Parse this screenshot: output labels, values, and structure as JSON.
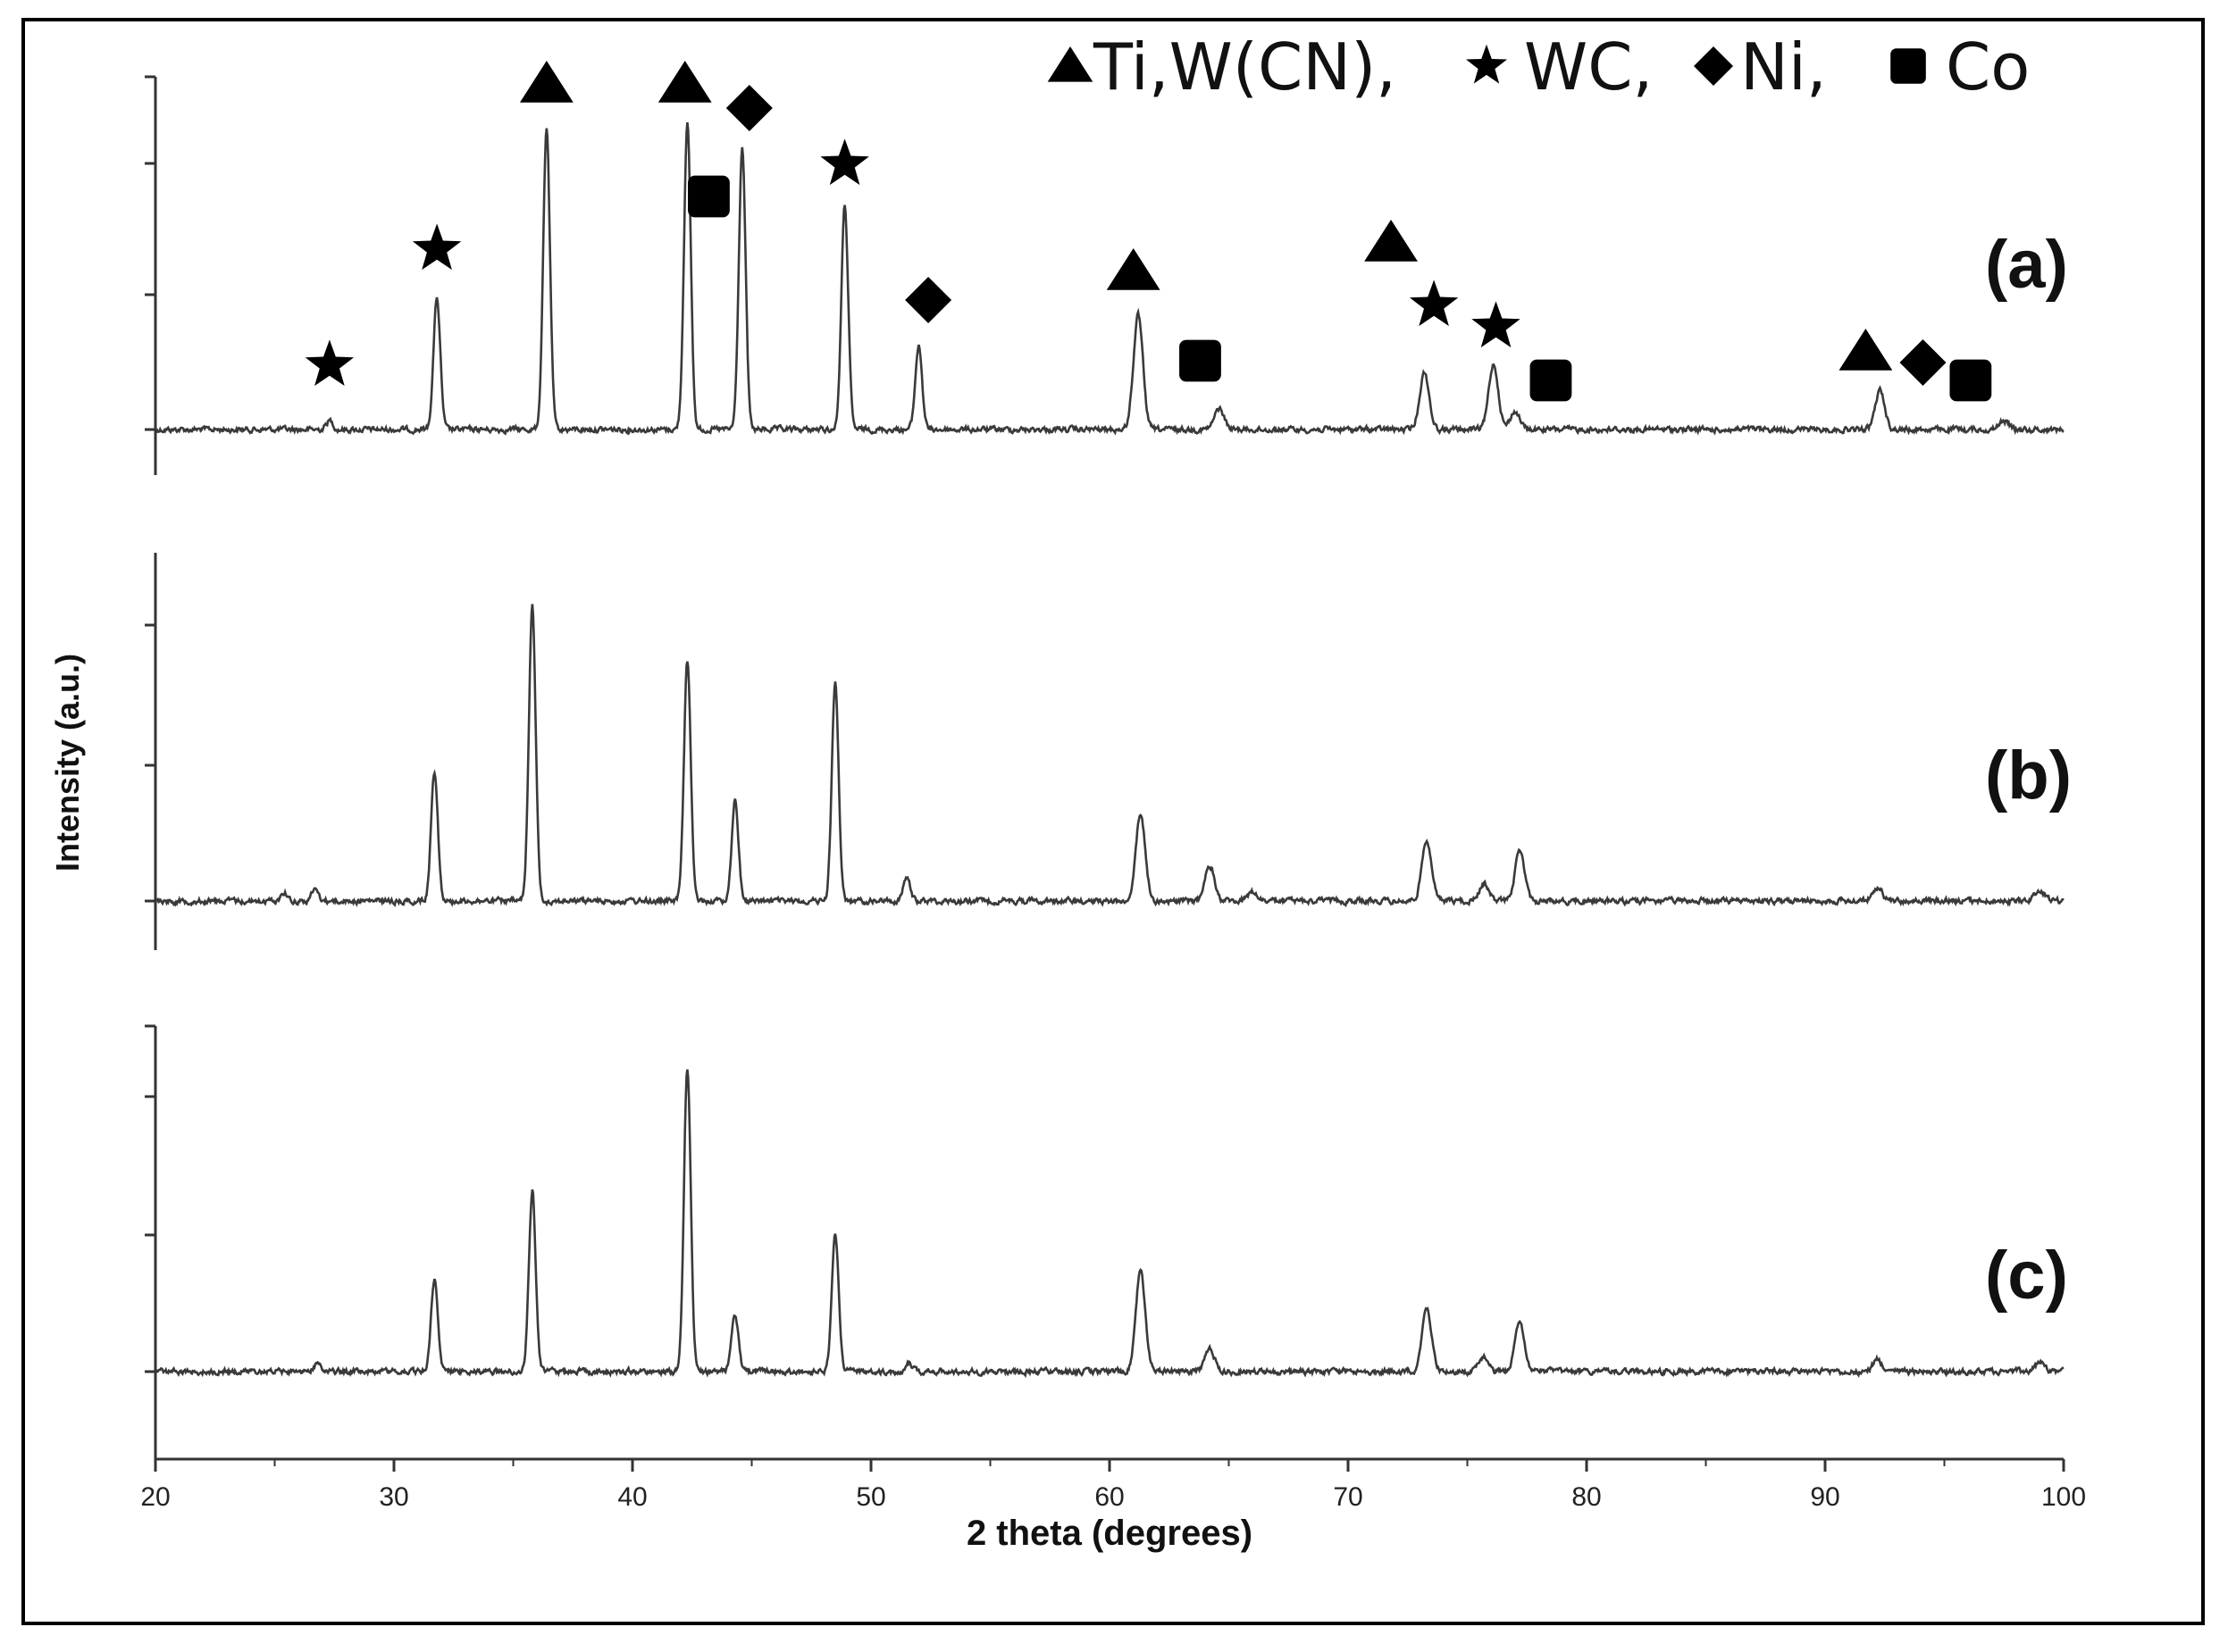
{
  "chart_data": {
    "type": "line",
    "title": "",
    "xlabel": "2 theta (degrees)",
    "ylabel": "Intensity (a.u.)",
    "xlim": [
      20,
      100
    ],
    "x_ticks": [
      20,
      30,
      40,
      50,
      60,
      70,
      80,
      90,
      100
    ],
    "legend": {
      "placement": "top-right",
      "entries": [
        {
          "symbol": "triangle",
          "label": "Ti,W(CN),"
        },
        {
          "symbol": "star",
          "label": "WC,"
        },
        {
          "symbol": "diamond",
          "label": "Ni,"
        },
        {
          "symbol": "square",
          "label": "Co"
        }
      ]
    },
    "series": [
      {
        "name": "(a)",
        "baseline": 0.0,
        "peaks": [
          [
            27.3,
            0.03
          ],
          [
            31.8,
            0.44
          ],
          [
            36.4,
            1.0
          ],
          [
            42.3,
            1.02
          ],
          [
            44.6,
            0.94
          ],
          [
            48.9,
            0.75
          ],
          [
            52.0,
            0.28
          ],
          [
            61.2,
            0.38
          ],
          [
            64.6,
            0.07
          ],
          [
            73.2,
            0.19
          ],
          [
            76.1,
            0.22
          ],
          [
            77.0,
            0.06
          ],
          [
            92.3,
            0.13
          ],
          [
            97.5,
            0.03
          ]
        ],
        "markers": [
          {
            "symbol": "star",
            "x": 27.3
          },
          {
            "symbol": "star",
            "x": 31.8
          },
          {
            "symbol": "triangle",
            "x": 36.4
          },
          {
            "symbol": "triangle",
            "x": 42.2
          },
          {
            "symbol": "square",
            "x": 43.2
          },
          {
            "symbol": "diamond",
            "x": 44.9
          },
          {
            "symbol": "star",
            "x": 48.9
          },
          {
            "symbol": "diamond",
            "x": 52.4
          },
          {
            "symbol": "triangle",
            "x": 61.0
          },
          {
            "symbol": "square",
            "x": 63.8
          },
          {
            "symbol": "triangle",
            "x": 71.8
          },
          {
            "symbol": "star",
            "x": 73.6
          },
          {
            "symbol": "star",
            "x": 76.2
          },
          {
            "symbol": "square",
            "x": 78.5
          },
          {
            "symbol": "triangle",
            "x": 91.7
          },
          {
            "symbol": "diamond",
            "x": 94.1
          },
          {
            "symbol": "square",
            "x": 96.1
          }
        ]
      },
      {
        "name": "(b)",
        "baseline": 0.0,
        "peaks": [
          [
            25.4,
            0.03
          ],
          [
            26.7,
            0.04
          ],
          [
            31.7,
            0.44
          ],
          [
            35.8,
            1.0
          ],
          [
            42.3,
            0.81
          ],
          [
            44.3,
            0.34
          ],
          [
            48.5,
            0.74
          ],
          [
            51.5,
            0.08
          ],
          [
            61.3,
            0.29
          ],
          [
            64.2,
            0.12
          ],
          [
            66.0,
            0.03
          ],
          [
            73.3,
            0.21
          ],
          [
            75.7,
            0.06
          ],
          [
            77.2,
            0.17
          ],
          [
            92.2,
            0.05
          ],
          [
            99.0,
            0.04
          ]
        ]
      },
      {
        "name": "(c)",
        "baseline": 0.0,
        "peaks": [
          [
            26.8,
            0.03
          ],
          [
            31.7,
            0.31
          ],
          [
            35.8,
            0.6
          ],
          [
            42.3,
            1.0
          ],
          [
            44.3,
            0.19
          ],
          [
            48.5,
            0.46
          ],
          [
            51.6,
            0.03
          ],
          [
            61.3,
            0.33
          ],
          [
            64.2,
            0.08
          ],
          [
            73.3,
            0.21
          ],
          [
            75.7,
            0.05
          ],
          [
            77.2,
            0.16
          ],
          [
            92.2,
            0.04
          ],
          [
            99.0,
            0.03
          ]
        ]
      }
    ],
    "grid": false
  }
}
